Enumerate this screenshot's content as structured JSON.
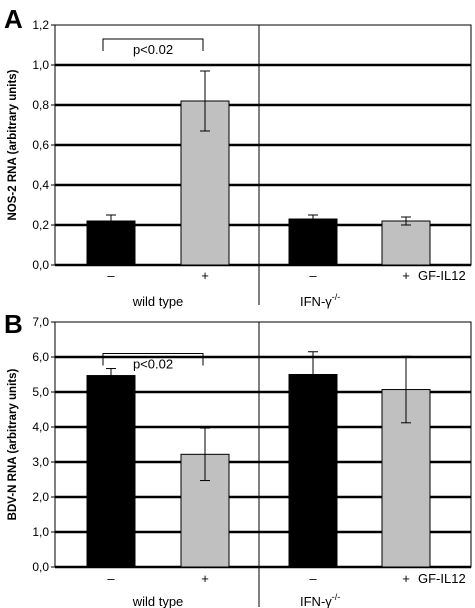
{
  "chart_data": [
    {
      "panel_label": "A",
      "type": "bar",
      "ylabel": "NOS-2 RNA (arbitrary units)",
      "ylim": [
        0,
        1.2
      ],
      "yticks": [
        "0,0",
        "0,2",
        "0,4",
        "0,6",
        "0,8",
        "1,0",
        "1,2"
      ],
      "grid": true,
      "categories": [
        "–",
        "+",
        "–",
        "+"
      ],
      "treatment_label": "GF-IL12",
      "groups": [
        {
          "name": "wild type",
          "name_sup": ""
        },
        {
          "name": "IFN-γ",
          "name_sup": "-/-"
        }
      ],
      "values": [
        0.22,
        0.82,
        0.23,
        0.22
      ],
      "errors": [
        0.03,
        0.15,
        0.02,
        0.02
      ],
      "bar_colors": [
        "#000000",
        "#c0c0c0",
        "#000000",
        "#c0c0c0"
      ],
      "significance": {
        "text": "p<0.02",
        "between": [
          0,
          1
        ],
        "level": 1.13
      }
    },
    {
      "panel_label": "B",
      "type": "bar",
      "ylabel": "BDV-N RNA (arbitrary units)",
      "ylim": [
        0,
        7
      ],
      "yticks": [
        "0,0",
        "1,0",
        "2,0",
        "3,0",
        "4,0",
        "5,0",
        "6,0",
        "7,0"
      ],
      "grid": true,
      "categories": [
        "–",
        "+",
        "–",
        "+"
      ],
      "treatment_label": "GF-IL12",
      "groups": [
        {
          "name": "wild type",
          "name_sup": ""
        },
        {
          "name": "IFN-γ",
          "name_sup": "-/-"
        }
      ],
      "values": [
        5.47,
        3.22,
        5.5,
        5.07
      ],
      "errors": [
        0.2,
        0.75,
        0.65,
        0.95
      ],
      "bar_colors": [
        "#000000",
        "#c0c0c0",
        "#000000",
        "#c0c0c0"
      ],
      "significance": {
        "text": "p<0.02",
        "between": [
          0,
          1
        ],
        "level": 6.1
      }
    }
  ]
}
